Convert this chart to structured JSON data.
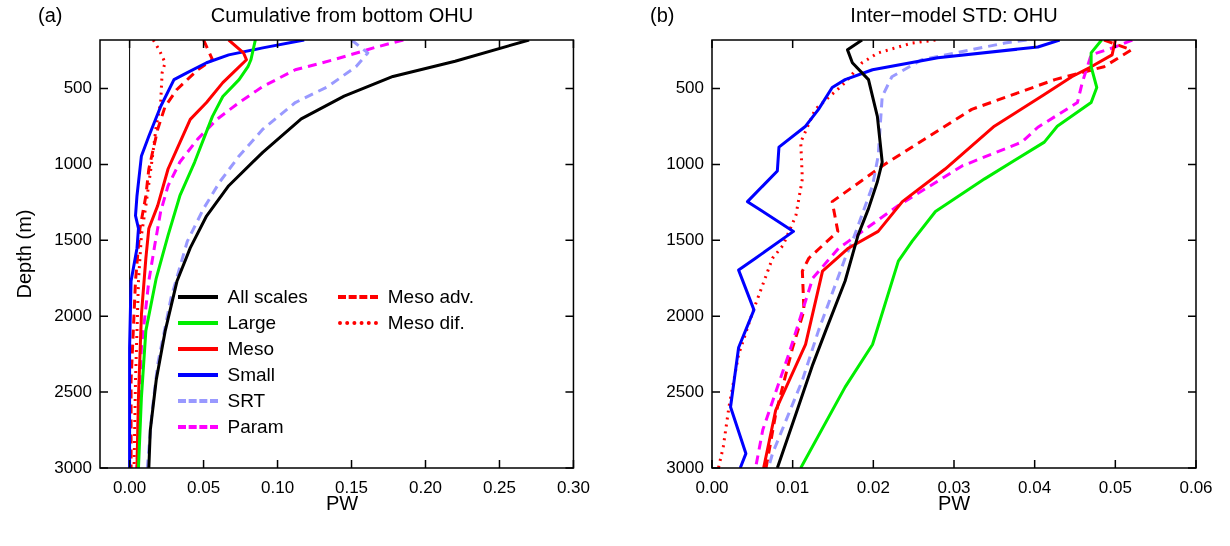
{
  "chart_data": [
    {
      "type": "line",
      "title": "Cumulative from bottom OHU",
      "annotations": [
        "(a)"
      ],
      "xlabel": "PW",
      "ylabel": "Depth (m)",
      "xlim": [
        -0.02,
        0.3
      ],
      "xticks": [
        {
          "value": 0,
          "label": "0.00"
        },
        {
          "value": 0.05,
          "label": "0.05"
        },
        {
          "value": 0.1,
          "label": "0.10"
        },
        {
          "value": 0.15,
          "label": "0.15"
        },
        {
          "value": 0.2,
          "label": "0.20"
        },
        {
          "value": 0.25,
          "label": "0.25"
        },
        {
          "value": 0.3,
          "label": "0.30"
        }
      ],
      "ylim": [
        3000,
        180
      ],
      "yticks": [
        500,
        1000,
        1500,
        2000,
        2500,
        3000
      ],
      "ref_lines": [
        {
          "axis": "x",
          "value": 0,
          "color": "#000000"
        }
      ],
      "legend": "bottom right",
      "series": [
        {
          "name": "All scales",
          "color": "#000000",
          "line_style": "solid",
          "x": [
            0.27,
            0.22,
            0.178,
            0.145,
            0.116,
            0.09,
            0.067,
            0.052,
            0.041,
            0.032,
            0.024,
            0.018,
            0.014,
            0.013
          ],
          "values": [
            180,
            320,
            420,
            550,
            700,
            920,
            1140,
            1340,
            1550,
            1770,
            2100,
            2420,
            2750,
            3000
          ]
        },
        {
          "name": "Large",
          "color": "#00ee00",
          "line_style": "solid",
          "x": [
            0.085,
            0.082,
            0.08,
            0.074,
            0.063,
            0.056,
            0.05,
            0.044,
            0.034,
            0.026,
            0.018,
            0.011,
            0.008,
            0.006
          ],
          "values": [
            180,
            310,
            356,
            441,
            552,
            683,
            833,
            984,
            1206,
            1467,
            1750,
            2095,
            2533,
            3000
          ]
        },
        {
          "name": "Meso",
          "color": "#ff0000",
          "line_style": "solid",
          "x": [
            0.067,
            0.077,
            0.079,
            0.07,
            0.063,
            0.052,
            0.041,
            0.032,
            0.026,
            0.019,
            0.013,
            0.011,
            0.008,
            0.006,
            0.005
          ],
          "values": [
            180,
            265,
            310,
            395,
            461,
            592,
            703,
            899,
            1030,
            1271,
            1422,
            1618,
            1990,
            2533,
            3000
          ]
        },
        {
          "name": "Small",
          "color": "#0000ff",
          "line_style": "solid",
          "x": [
            0.118,
            0.09,
            0.067,
            0.052,
            0.039,
            0.03,
            0.021,
            0.013,
            0.008,
            0.005,
            0.004,
            0.006,
            0.005,
            0.001,
            0.0,
            0.0
          ],
          "values": [
            180,
            232,
            278,
            330,
            395,
            441,
            618,
            814,
            944,
            1206,
            1337,
            1422,
            1552,
            1768,
            2206,
            3000
          ]
        },
        {
          "name": "SRT",
          "color": "#9999ff",
          "line_style": "dashed",
          "x": [
            0.15,
            0.161,
            0.153,
            0.134,
            0.112,
            0.09,
            0.074,
            0.061,
            0.05,
            0.039,
            0.028,
            0.019,
            0.015,
            0.012
          ],
          "values": [
            180,
            265,
            356,
            487,
            592,
            768,
            944,
            1114,
            1291,
            1507,
            1879,
            2317,
            2644,
            3000
          ]
        },
        {
          "name": "Param",
          "color": "#ff00ff",
          "line_style": "dashed",
          "x": [
            0.185,
            0.167,
            0.138,
            0.112,
            0.09,
            0.074,
            0.059,
            0.046,
            0.034,
            0.026,
            0.021,
            0.017,
            0.013,
            0.008,
            0.006,
            0.005
          ],
          "values": [
            180,
            226,
            310,
            376,
            487,
            592,
            703,
            833,
            984,
            1141,
            1310,
            1533,
            1768,
            2206,
            2644,
            3000
          ]
        },
        {
          "name": "Meso adv.",
          "color": "#ff0000",
          "line_style": "dashed",
          "x": [
            0.05,
            0.056,
            0.046,
            0.032,
            0.024,
            0.019,
            0.013,
            0.011,
            0.007,
            0.004,
            0.001,
            0.001
          ],
          "values": [
            180,
            310,
            376,
            506,
            618,
            768,
            1030,
            1206,
            1422,
            1768,
            2422,
            3000
          ]
        },
        {
          "name": "Meso dif.",
          "color": "#ff0000",
          "line_style": "dotted",
          "x": [
            0.016,
            0.02,
            0.024,
            0.022,
            0.021,
            0.018,
            0.015,
            0.011,
            0.008,
            0.006,
            0.004,
            0.003
          ],
          "values": [
            180,
            245,
            330,
            395,
            592,
            748,
            984,
            1271,
            1467,
            1768,
            2422,
            3000
          ]
        }
      ]
    },
    {
      "type": "line",
      "title": "Inter−model STD: OHU",
      "annotations": [
        "(b)"
      ],
      "xlabel": "PW",
      "xlim": [
        0,
        0.06
      ],
      "xticks": [
        {
          "value": 0,
          "label": "0.00"
        },
        {
          "value": 0.01,
          "label": "0.01"
        },
        {
          "value": 0.02,
          "label": "0.02"
        },
        {
          "value": 0.03,
          "label": "0.03"
        },
        {
          "value": 0.04,
          "label": "0.04"
        },
        {
          "value": 0.05,
          "label": "0.05"
        },
        {
          "value": 0.06,
          "label": "0.06"
        }
      ],
      "ylim": [
        3000,
        180
      ],
      "yticks": [
        500,
        1000,
        1500,
        2000,
        2500,
        3000
      ],
      "series": [
        {
          "color": "#000000",
          "line_style": "solid",
          "x": [
            0.0186,
            0.0168,
            0.0174,
            0.0194,
            0.0199,
            0.0205,
            0.0211,
            0.0205,
            0.0194,
            0.0181,
            0.0165,
            0.0141,
            0.0125,
            0.0104,
            0.0081
          ],
          "values": [
            180,
            245,
            330,
            441,
            552,
            683,
            984,
            1114,
            1291,
            1467,
            1768,
            2095,
            2317,
            2644,
            3000
          ]
        },
        {
          "color": "#00ee00",
          "line_style": "solid",
          "x": [
            0.0483,
            0.047,
            0.047,
            0.0477,
            0.047,
            0.0428,
            0.0412,
            0.0338,
            0.0277,
            0.0248,
            0.0231,
            0.0199,
            0.0165,
            0.011
          ],
          "values": [
            180,
            265,
            356,
            493,
            592,
            748,
            853,
            1095,
            1310,
            1507,
            1637,
            2186,
            2467,
            3000
          ]
        },
        {
          "color": "#ff0000",
          "line_style": "solid",
          "x": [
            0.05,
            0.0496,
            0.047,
            0.0446,
            0.0412,
            0.035,
            0.0289,
            0.0236,
            0.0206,
            0.0169,
            0.0137,
            0.0116,
            0.0079,
            0.0064
          ],
          "values": [
            180,
            278,
            356,
            422,
            539,
            748,
            1030,
            1245,
            1441,
            1552,
            1703,
            2186,
            2618,
            3000
          ]
        },
        {
          "color": "#0000ff",
          "line_style": "solid",
          "x": [
            0.0431,
            0.0404,
            0.028,
            0.0199,
            0.0165,
            0.0149,
            0.0132,
            0.0116,
            0.0083,
            0.0081,
            0.0044,
            0.0101,
            0.0054,
            0.0033,
            0.0052,
            0.0033,
            0.0023,
            0.0042,
            0.0035
          ],
          "values": [
            180,
            226,
            297,
            376,
            441,
            493,
            637,
            748,
            886,
            1043,
            1245,
            1441,
            1618,
            1696,
            1958,
            2206,
            2598,
            2905,
            3000
          ]
        },
        {
          "color": "#9999ff",
          "line_style": "dashed",
          "x": [
            0.039,
            0.0363,
            0.026,
            0.0223,
            0.0211,
            0.0206,
            0.0199,
            0.0174,
            0.0165,
            0.0132,
            0.0112,
            0.0075,
            0.007
          ],
          "values": [
            180,
            200,
            310,
            422,
            552,
            944,
            1141,
            1507,
            1618,
            2095,
            2422,
            2905,
            3000
          ]
        },
        {
          "color": "#ff00ff",
          "line_style": "dashed",
          "x": [
            0.0521,
            0.05,
            0.047,
            0.0459,
            0.0453,
            0.0404,
            0.0384,
            0.031,
            0.0231,
            0.0169,
            0.0157,
            0.0125,
            0.0095,
            0.0063,
            0.0054
          ],
          "values": [
            180,
            226,
            278,
            461,
            592,
            755,
            853,
            1010,
            1271,
            1507,
            1552,
            1748,
            2252,
            2748,
            3000
          ]
        },
        {
          "color": "#ff0000",
          "line_style": "dashed",
          "x": [
            0.0486,
            0.052,
            0.0486,
            0.0425,
            0.0322,
            0.0211,
            0.0149,
            0.0156,
            0.012,
            0.0112,
            0.0114,
            0.01,
            0.0079,
            0.0067
          ],
          "values": [
            180,
            245,
            356,
            441,
            637,
            1010,
            1245,
            1441,
            1618,
            1703,
            1964,
            2206,
            2644,
            3000
          ]
        },
        {
          "color": "#ff0000",
          "line_style": "dotted",
          "x": [
            0.0277,
            0.0248,
            0.0206,
            0.0186,
            0.0165,
            0.0128,
            0.011,
            0.0112,
            0.0104,
            0.0088,
            0.0075,
            0.0051,
            0.0033,
            0.0021,
            0.0014,
            0.0008
          ],
          "values": [
            180,
            200,
            265,
            330,
            461,
            637,
            853,
            1095,
            1337,
            1533,
            1618,
            1964,
            2252,
            2598,
            2860,
            3000
          ]
        }
      ]
    }
  ]
}
